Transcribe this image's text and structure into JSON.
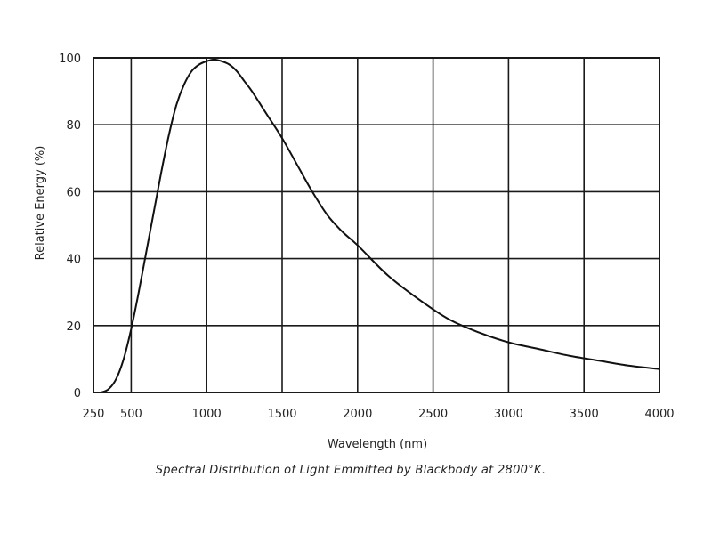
{
  "chart_data": {
    "type": "line",
    "title": "",
    "caption": "Spectral Distribution of Light Emmitted by Blackbody at 2800°K.",
    "xlabel": "Wavelength (nm)",
    "ylabel": "Relative Energy (%)",
    "xlim": [
      250,
      4000
    ],
    "ylim": [
      0,
      100
    ],
    "x_ticks": [
      250,
      500,
      1000,
      1500,
      2000,
      2500,
      3000,
      3500,
      4000
    ],
    "x_tick_labels": [
      "250",
      "500",
      "1000",
      "1500",
      "2000",
      "2500",
      "3000",
      "3500",
      "4000"
    ],
    "y_ticks": [
      0,
      20,
      40,
      60,
      80,
      100
    ],
    "y_tick_labels": [
      "0",
      "20",
      "40",
      "60",
      "80",
      "100"
    ],
    "grid": true,
    "legend": "none",
    "colors": {
      "line": "#111111",
      "grid": "#1a1a1a",
      "text": "#222222"
    },
    "series": [
      {
        "x": [
          300,
          350,
          400,
          450,
          500,
          550,
          600,
          650,
          700,
          750,
          800,
          850,
          900,
          950,
          1000,
          1050,
          1100,
          1150,
          1200,
          1250,
          1300,
          1400,
          1500,
          1600,
          1700,
          1800,
          1900,
          2000,
          2200,
          2400,
          2600,
          2800,
          3000,
          3200,
          3400,
          3600,
          3800,
          4000
        ],
        "values": [
          0,
          1,
          4,
          10,
          19,
          30,
          42,
          54,
          66,
          77,
          86,
          92,
          96,
          98,
          99,
          99.5,
          99,
          98,
          96,
          93,
          90,
          83,
          76,
          68,
          60,
          53,
          48,
          44,
          35,
          28,
          22,
          18,
          15,
          13,
          11,
          9.5,
          8,
          7
        ]
      }
    ]
  }
}
